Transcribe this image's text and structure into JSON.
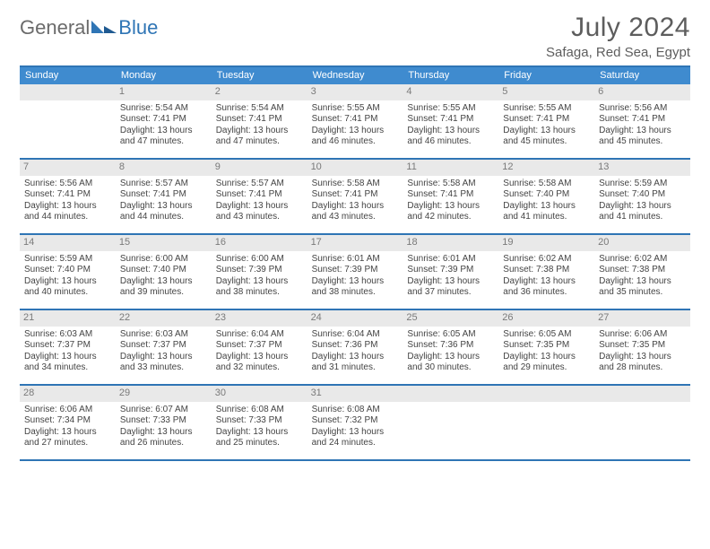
{
  "brand": {
    "general": "General",
    "blue": "Blue"
  },
  "title": {
    "month": "July 2024",
    "location": "Safaga, Red Sea, Egypt"
  },
  "colors": {
    "accent": "#2f75b5",
    "header_band": "#3f8bcf",
    "day_band": "#e9e9e9",
    "text_muted": "#6b6b6b"
  },
  "weekdays": [
    "Sunday",
    "Monday",
    "Tuesday",
    "Wednesday",
    "Thursday",
    "Friday",
    "Saturday"
  ],
  "weeks": [
    [
      {
        "num": "",
        "sunrise": "",
        "sunset": "",
        "daylight": ""
      },
      {
        "num": "1",
        "sunrise": "Sunrise: 5:54 AM",
        "sunset": "Sunset: 7:41 PM",
        "daylight": "Daylight: 13 hours and 47 minutes."
      },
      {
        "num": "2",
        "sunrise": "Sunrise: 5:54 AM",
        "sunset": "Sunset: 7:41 PM",
        "daylight": "Daylight: 13 hours and 47 minutes."
      },
      {
        "num": "3",
        "sunrise": "Sunrise: 5:55 AM",
        "sunset": "Sunset: 7:41 PM",
        "daylight": "Daylight: 13 hours and 46 minutes."
      },
      {
        "num": "4",
        "sunrise": "Sunrise: 5:55 AM",
        "sunset": "Sunset: 7:41 PM",
        "daylight": "Daylight: 13 hours and 46 minutes."
      },
      {
        "num": "5",
        "sunrise": "Sunrise: 5:55 AM",
        "sunset": "Sunset: 7:41 PM",
        "daylight": "Daylight: 13 hours and 45 minutes."
      },
      {
        "num": "6",
        "sunrise": "Sunrise: 5:56 AM",
        "sunset": "Sunset: 7:41 PM",
        "daylight": "Daylight: 13 hours and 45 minutes."
      }
    ],
    [
      {
        "num": "7",
        "sunrise": "Sunrise: 5:56 AM",
        "sunset": "Sunset: 7:41 PM",
        "daylight": "Daylight: 13 hours and 44 minutes."
      },
      {
        "num": "8",
        "sunrise": "Sunrise: 5:57 AM",
        "sunset": "Sunset: 7:41 PM",
        "daylight": "Daylight: 13 hours and 44 minutes."
      },
      {
        "num": "9",
        "sunrise": "Sunrise: 5:57 AM",
        "sunset": "Sunset: 7:41 PM",
        "daylight": "Daylight: 13 hours and 43 minutes."
      },
      {
        "num": "10",
        "sunrise": "Sunrise: 5:58 AM",
        "sunset": "Sunset: 7:41 PM",
        "daylight": "Daylight: 13 hours and 43 minutes."
      },
      {
        "num": "11",
        "sunrise": "Sunrise: 5:58 AM",
        "sunset": "Sunset: 7:41 PM",
        "daylight": "Daylight: 13 hours and 42 minutes."
      },
      {
        "num": "12",
        "sunrise": "Sunrise: 5:58 AM",
        "sunset": "Sunset: 7:40 PM",
        "daylight": "Daylight: 13 hours and 41 minutes."
      },
      {
        "num": "13",
        "sunrise": "Sunrise: 5:59 AM",
        "sunset": "Sunset: 7:40 PM",
        "daylight": "Daylight: 13 hours and 41 minutes."
      }
    ],
    [
      {
        "num": "14",
        "sunrise": "Sunrise: 5:59 AM",
        "sunset": "Sunset: 7:40 PM",
        "daylight": "Daylight: 13 hours and 40 minutes."
      },
      {
        "num": "15",
        "sunrise": "Sunrise: 6:00 AM",
        "sunset": "Sunset: 7:40 PM",
        "daylight": "Daylight: 13 hours and 39 minutes."
      },
      {
        "num": "16",
        "sunrise": "Sunrise: 6:00 AM",
        "sunset": "Sunset: 7:39 PM",
        "daylight": "Daylight: 13 hours and 38 minutes."
      },
      {
        "num": "17",
        "sunrise": "Sunrise: 6:01 AM",
        "sunset": "Sunset: 7:39 PM",
        "daylight": "Daylight: 13 hours and 38 minutes."
      },
      {
        "num": "18",
        "sunrise": "Sunrise: 6:01 AM",
        "sunset": "Sunset: 7:39 PM",
        "daylight": "Daylight: 13 hours and 37 minutes."
      },
      {
        "num": "19",
        "sunrise": "Sunrise: 6:02 AM",
        "sunset": "Sunset: 7:38 PM",
        "daylight": "Daylight: 13 hours and 36 minutes."
      },
      {
        "num": "20",
        "sunrise": "Sunrise: 6:02 AM",
        "sunset": "Sunset: 7:38 PM",
        "daylight": "Daylight: 13 hours and 35 minutes."
      }
    ],
    [
      {
        "num": "21",
        "sunrise": "Sunrise: 6:03 AM",
        "sunset": "Sunset: 7:37 PM",
        "daylight": "Daylight: 13 hours and 34 minutes."
      },
      {
        "num": "22",
        "sunrise": "Sunrise: 6:03 AM",
        "sunset": "Sunset: 7:37 PM",
        "daylight": "Daylight: 13 hours and 33 minutes."
      },
      {
        "num": "23",
        "sunrise": "Sunrise: 6:04 AM",
        "sunset": "Sunset: 7:37 PM",
        "daylight": "Daylight: 13 hours and 32 minutes."
      },
      {
        "num": "24",
        "sunrise": "Sunrise: 6:04 AM",
        "sunset": "Sunset: 7:36 PM",
        "daylight": "Daylight: 13 hours and 31 minutes."
      },
      {
        "num": "25",
        "sunrise": "Sunrise: 6:05 AM",
        "sunset": "Sunset: 7:36 PM",
        "daylight": "Daylight: 13 hours and 30 minutes."
      },
      {
        "num": "26",
        "sunrise": "Sunrise: 6:05 AM",
        "sunset": "Sunset: 7:35 PM",
        "daylight": "Daylight: 13 hours and 29 minutes."
      },
      {
        "num": "27",
        "sunrise": "Sunrise: 6:06 AM",
        "sunset": "Sunset: 7:35 PM",
        "daylight": "Daylight: 13 hours and 28 minutes."
      }
    ],
    [
      {
        "num": "28",
        "sunrise": "Sunrise: 6:06 AM",
        "sunset": "Sunset: 7:34 PM",
        "daylight": "Daylight: 13 hours and 27 minutes."
      },
      {
        "num": "29",
        "sunrise": "Sunrise: 6:07 AM",
        "sunset": "Sunset: 7:33 PM",
        "daylight": "Daylight: 13 hours and 26 minutes."
      },
      {
        "num": "30",
        "sunrise": "Sunrise: 6:08 AM",
        "sunset": "Sunset: 7:33 PM",
        "daylight": "Daylight: 13 hours and 25 minutes."
      },
      {
        "num": "31",
        "sunrise": "Sunrise: 6:08 AM",
        "sunset": "Sunset: 7:32 PM",
        "daylight": "Daylight: 13 hours and 24 minutes."
      },
      {
        "num": "",
        "sunrise": "",
        "sunset": "",
        "daylight": ""
      },
      {
        "num": "",
        "sunrise": "",
        "sunset": "",
        "daylight": ""
      },
      {
        "num": "",
        "sunrise": "",
        "sunset": "",
        "daylight": ""
      }
    ]
  ]
}
